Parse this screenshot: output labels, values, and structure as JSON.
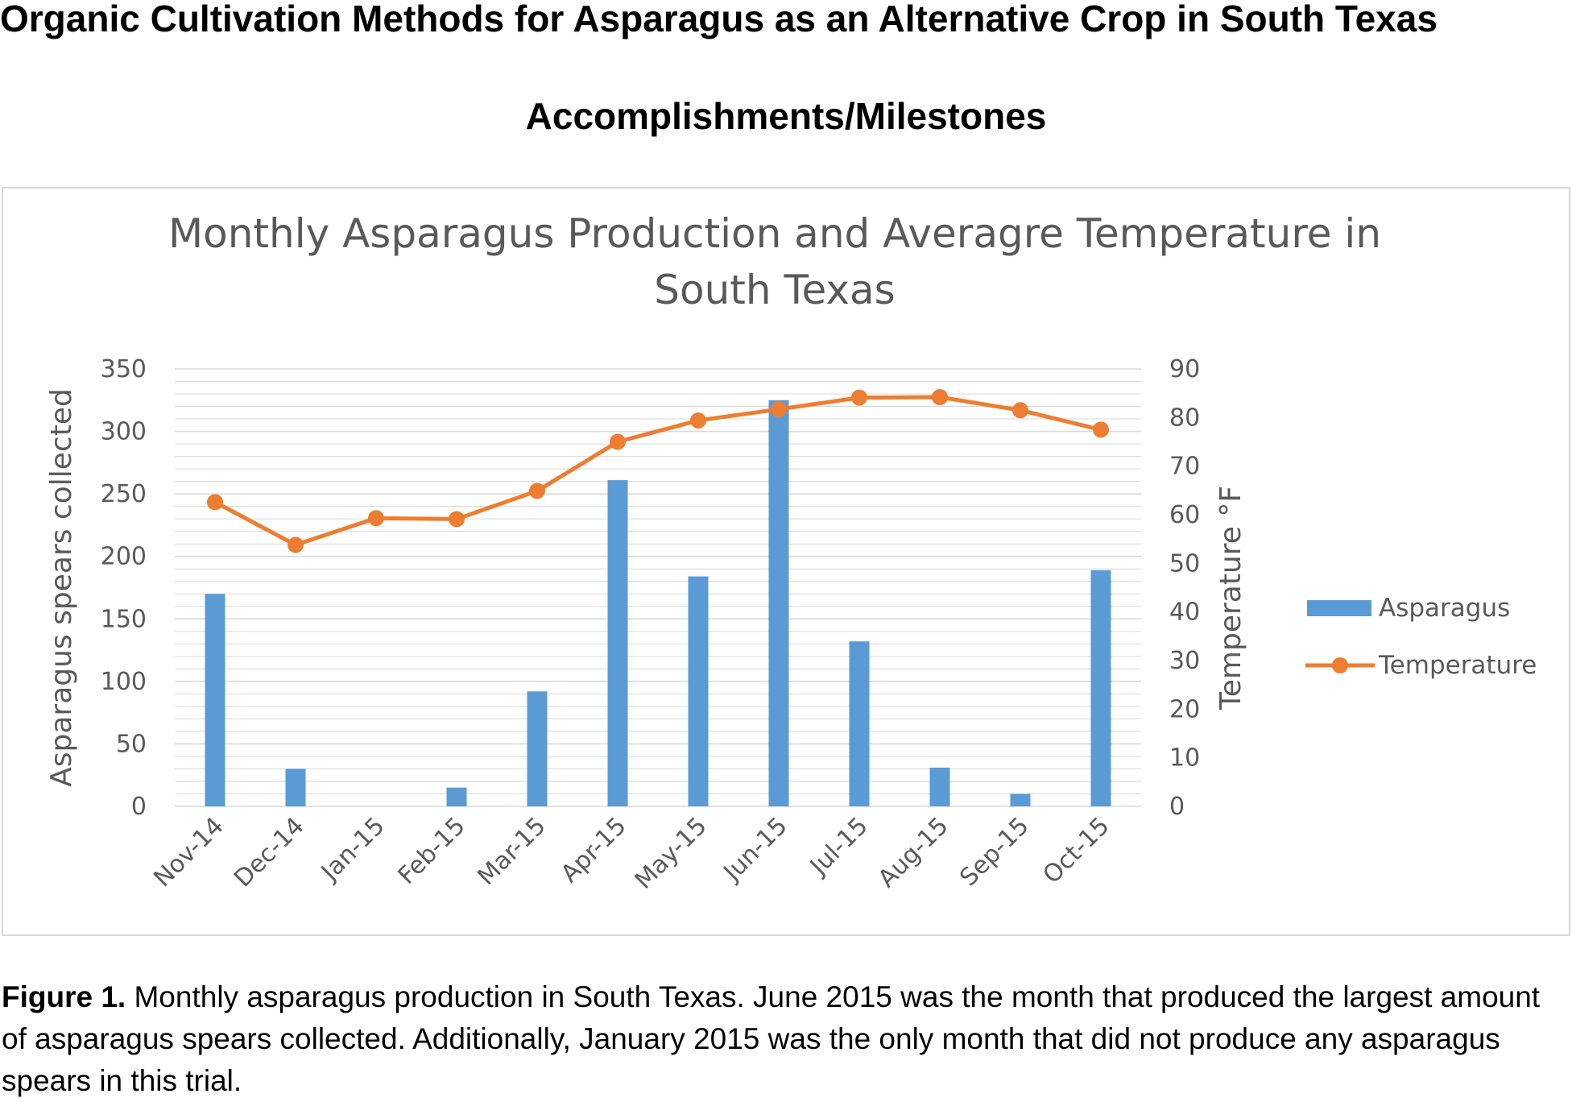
{
  "page": {
    "title": "Organic Cultivation Methods for Asparagus as an Alternative Crop in South Texas",
    "subtitle": "Accomplishments/Milestones"
  },
  "caption": {
    "label": "Figure 1.",
    "text": " Monthly asparagus production in South Texas. June 2015 was the month that produced the largest amount of asparagus spears collected. Additionally, January 2015 was the only month that did not produce any asparagus spears in this trial."
  },
  "colors": {
    "bar": "#5b9bd5",
    "line": "#ed7d31",
    "grid": "#d9d9d9",
    "text": "#595959"
  },
  "chart_data": {
    "type": "bar",
    "title_lines": [
      "Monthly Asparagus Production and Averagre Temperature in",
      "South Texas"
    ],
    "categories": [
      "Nov-14",
      "Dec-14",
      "Jan-15",
      "Feb-15",
      "Mar-15",
      "Apr-15",
      "May-15",
      "Jun-15",
      "Jul-15",
      "Aug-15",
      "Sep-15",
      "Oct-15"
    ],
    "series": [
      {
        "name": "Asparagus",
        "type": "bar",
        "axis": "left",
        "values": [
          170,
          30,
          0,
          15,
          92,
          261,
          184,
          325,
          132,
          31,
          10,
          189
        ]
      },
      {
        "name": "Temperature",
        "type": "line",
        "axis": "right",
        "values": [
          62.6,
          53.8,
          59.3,
          59.1,
          64.9,
          75.0,
          79.4,
          81.7,
          84.1,
          84.2,
          81.5,
          77.5
        ]
      }
    ],
    "ylabel": "Asparagus spears collected",
    "ylabel_right": "Temperature °F",
    "ylim": [
      0,
      350
    ],
    "yticks": [
      0,
      50,
      100,
      150,
      200,
      250,
      300,
      350
    ],
    "ylim_right": [
      0,
      90
    ],
    "yticks_right": [
      0,
      10,
      20,
      30,
      40,
      50,
      60,
      70,
      80,
      90
    ],
    "grid": true,
    "legend_position": "right"
  }
}
